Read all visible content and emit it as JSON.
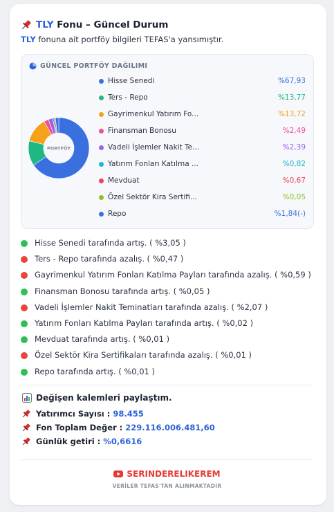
{
  "header": {
    "fund_code": "TLY",
    "title": "Fonu – Güncel Durum",
    "subtitle_code": "TLY",
    "subtitle": "fonuna ait portföy bilgileri TEFAS'a yansımıştır."
  },
  "chart_data": {
    "type": "donut",
    "title": "GÜNCEL PORTFÖY DAĞILIMI",
    "center_label": "PORTFÖY",
    "categories": [
      "Hisse Senedi",
      "Ters - Repo",
      "Gayrimenkul Yatırım Fo...",
      "Finansman Bonosu",
      "Vadeli İşlemler Nakit Te...",
      "Yatırım Fonları Katılma ...",
      "Mevduat",
      "Özel Sektör Kira Sertifi...",
      "Repo"
    ],
    "values": [
      67.93,
      13.77,
      13.72,
      2.49,
      2.39,
      0.82,
      0.67,
      0.05,
      1.84
    ],
    "value_labels": [
      "%67,93",
      "%13,77",
      "%13,72",
      "%2,49",
      "%2,39",
      "%0,82",
      "%0,67",
      "%0,05",
      "%1,84(-)"
    ],
    "colors": [
      "#3a6fe0",
      "#1fb885",
      "#f5a11a",
      "#ee4f9a",
      "#9a62e6",
      "#1ab5d6",
      "#ee4257",
      "#8cc21c",
      "#3a6fe0"
    ]
  },
  "changes": [
    {
      "text": "Hisse Senedi tarafında artış. ( %3,05 )",
      "color": "#2fbf55"
    },
    {
      "text": "Ters - Repo tarafında azalış. ( %0,47 )",
      "color": "#e8453c"
    },
    {
      "text": "Gayrimenkul Yatırım Fonları Katılma Payları tarafında azalış. ( %0,59 )",
      "color": "#e8453c"
    },
    {
      "text": "Finansman Bonosu tarafında artış. ( %0,05 )",
      "color": "#2fbf55"
    },
    {
      "text": "Vadeli İşlemler Nakit Teminatları tarafında azalış. ( %2,07 )",
      "color": "#e8453c"
    },
    {
      "text": "Yatırım Fonları Katılma Payları tarafında artış. ( %0,02 )",
      "color": "#2fbf55"
    },
    {
      "text": "Mevduat tarafında artış. ( %0,01 )",
      "color": "#2fbf55"
    },
    {
      "text": "Özel Sektör Kira Sertifikaları tarafında azalış. ( %0,01 )",
      "color": "#e8453c"
    },
    {
      "text": "Repo tarafında artış. ( %0,01 )",
      "color": "#2fbf55"
    }
  ],
  "share_title": "Değişen kalemleri paylaştım.",
  "stats": [
    {
      "label": "Yatırımcı Sayısı :",
      "value": "98.455"
    },
    {
      "label": "Fon Toplam Değer :",
      "value": "229.116.006.481,60"
    },
    {
      "label": "Günlük getiri :",
      "value": "%0,6616"
    }
  ],
  "footer": {
    "channel": "SERINDERELIKEREM",
    "note": "VERİLER TEFAS'TAN ALINMAKTADIR"
  }
}
